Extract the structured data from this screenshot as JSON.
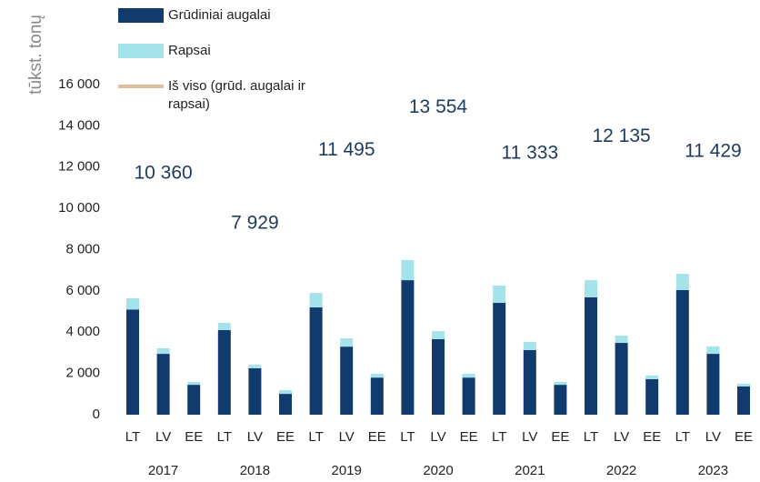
{
  "chart_data": {
    "type": "bar",
    "y_label": "tūkst. tonų",
    "categories": [
      "LT",
      "LV",
      "EE",
      "LT",
      "LV",
      "EE",
      "LT",
      "LV",
      "EE",
      "LT",
      "LV",
      "EE",
      "LT",
      "LV",
      "EE",
      "LT",
      "LV",
      "EE",
      "LT",
      "LV",
      "EE"
    ],
    "groups": [
      "2017",
      "2018",
      "2019",
      "2020",
      "2021",
      "2022",
      "2023"
    ],
    "series": [
      {
        "name": "Grūdiniai augalai",
        "type": "bar",
        "stacked": true,
        "color": "#123b6d",
        "values": [
          5100,
          2950,
          1450,
          4100,
          2250,
          1010,
          5200,
          3300,
          1800,
          6520,
          3660,
          1800,
          5420,
          3130,
          1450,
          5690,
          3480,
          1720,
          6040,
          2950,
          1370
        ]
      },
      {
        "name": "Rapsai",
        "type": "bar",
        "stacked": true,
        "color": "#a5e3ea",
        "values": [
          540,
          270,
          140,
          350,
          170,
          180,
          700,
          400,
          180,
          970,
          390,
          180,
          840,
          400,
          140,
          830,
          350,
          180,
          790,
          360,
          130
        ]
      },
      {
        "name": "Iš viso (grūd. augalai ir rapsai)",
        "type": "line",
        "color": "#e0bd9d",
        "values": [
          10360,
          10360,
          10360,
          7929,
          7929,
          7929,
          11495,
          11495,
          11495,
          13554,
          13554,
          13554,
          11333,
          11333,
          11333,
          12135,
          12135,
          12135,
          11429,
          11429,
          11429
        ],
        "value_labels": [
          null,
          "10 360",
          null,
          null,
          "7 929",
          null,
          null,
          "11 495",
          null,
          null,
          "13 554",
          null,
          null,
          "11 333",
          null,
          null,
          "12 135",
          null,
          null,
          "11 429",
          null
        ]
      }
    ],
    "ylim": [
      0,
      16000
    ],
    "yticks": [
      0,
      {
        "value": 2000,
        "label": "2 000"
      },
      {
        "value": 4000,
        "label": "4 000"
      },
      {
        "value": 6000,
        "label": "6 000"
      },
      {
        "value": 8000,
        "label": "8 000"
      },
      {
        "value": 10000,
        "label": "10 000"
      },
      {
        "value": 12000,
        "label": "12 000"
      },
      {
        "value": 14000,
        "label": "14 000"
      },
      {
        "value": 16000,
        "label": "16 000"
      }
    ],
    "grid": false,
    "legend": "top-left"
  }
}
